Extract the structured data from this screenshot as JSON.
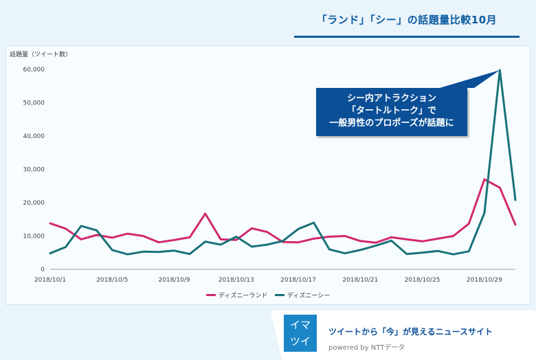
{
  "title": "「ランド」「シー」の話題量比較10月",
  "callout": {
    "line1": "シー内アトラクション",
    "line2": "「タートルトーク」で",
    "line3": "一般男性のプロポーズが話題に"
  },
  "footer": {
    "logo_line1": "イマ",
    "logo_line2": "ツイ",
    "tagline": "ツイートから「今」が見えるニュースサイト",
    "powered": "powered by  NTTデータ"
  },
  "colors": {
    "land": "#d1286f",
    "sea": "#187278",
    "title": "#0b5aa0",
    "callout_bg": "#0b4f97"
  },
  "chart_data": {
    "type": "line",
    "title": "",
    "xlabel": "",
    "ylabel": "話題量（ツイート数）",
    "ylim": [
      0,
      60000
    ],
    "yticks": [
      0,
      10000,
      20000,
      30000,
      40000,
      50000,
      60000
    ],
    "ytick_labels": [
      "0",
      "10,000",
      "20,000",
      "30,000",
      "40,000",
      "50,000",
      "60,000"
    ],
    "x": [
      "2018/10/1",
      "2018/10/2",
      "2018/10/3",
      "2018/10/4",
      "2018/10/5",
      "2018/10/6",
      "2018/10/7",
      "2018/10/8",
      "2018/10/9",
      "2018/10/10",
      "2018/10/11",
      "2018/10/12",
      "2018/10/13",
      "2018/10/14",
      "2018/10/15",
      "2018/10/16",
      "2018/10/17",
      "2018/10/18",
      "2018/10/19",
      "2018/10/20",
      "2018/10/21",
      "2018/10/22",
      "2018/10/23",
      "2018/10/24",
      "2018/10/25",
      "2018/10/26",
      "2018/10/27",
      "2018/10/28",
      "2018/10/29",
      "2018/10/30",
      "2018/10/31"
    ],
    "xtick_labels": [
      "2018/10/1",
      "2018/10/5",
      "2018/10/9",
      "2018/10/13",
      "2018/10/17",
      "2018/10/21",
      "2018/10/25",
      "2018/10/29"
    ],
    "series": [
      {
        "name": "ディズニーランド",
        "color": "#d1286f",
        "values": [
          13800,
          12200,
          9000,
          10300,
          9500,
          10700,
          10000,
          8100,
          8800,
          9600,
          16700,
          9000,
          8800,
          12300,
          11200,
          8200,
          8100,
          9200,
          9800,
          10000,
          8500,
          8000,
          9600,
          9000,
          8400,
          9200,
          10000,
          13700,
          27000,
          24500,
          13400
        ]
      },
      {
        "name": "ディズニーシー",
        "color": "#187278",
        "values": [
          4800,
          6700,
          13000,
          11700,
          5800,
          4500,
          5300,
          5200,
          5600,
          4600,
          8300,
          7400,
          9800,
          6800,
          7400,
          8500,
          12100,
          14000,
          6000,
          4800,
          5800,
          7100,
          8600,
          4600,
          5000,
          5500,
          4500,
          5400,
          16900,
          59800,
          20800
        ]
      }
    ],
    "grid": false,
    "legend": "bottom"
  }
}
